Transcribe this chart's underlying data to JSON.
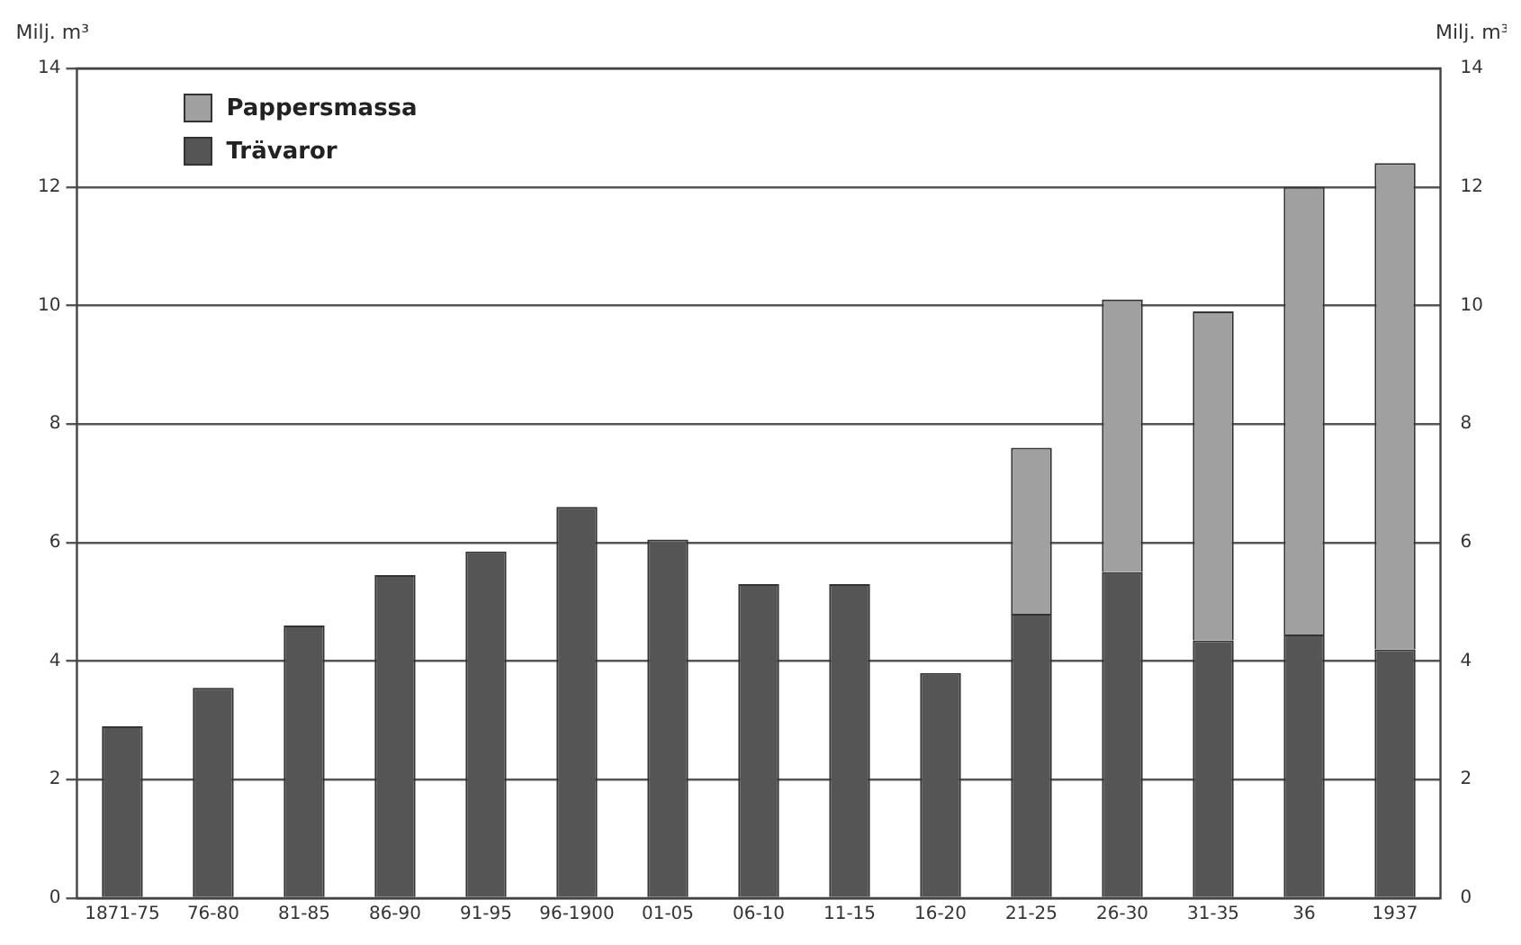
{
  "chart_data": {
    "type": "bar",
    "stacked": true,
    "categories": [
      "1871-75",
      "76-80",
      "81-85",
      "86-90",
      "91-95",
      "96-1900",
      "01-05",
      "06-10",
      "11-15",
      "16-20",
      "21-25",
      "26-30",
      "31-35",
      "36",
      "1937"
    ],
    "series": [
      {
        "name": "Trävaror",
        "color": "#555555",
        "values": [
          2.9,
          3.55,
          4.6,
          5.45,
          5.85,
          6.6,
          6.05,
          5.3,
          5.3,
          3.8,
          4.8,
          5.5,
          4.35,
          4.45,
          4.2
        ]
      },
      {
        "name": "Pappersmassa",
        "color": "#a0a0a0",
        "values": [
          null,
          null,
          null,
          null,
          null,
          null,
          null,
          null,
          null,
          null,
          2.8,
          4.6,
          5.55,
          7.55,
          8.2
        ]
      }
    ],
    "ylabel": "Milj. m³",
    "y2label": "Milj. m³",
    "ylim": [
      0,
      14
    ],
    "yticks": [
      0,
      2,
      4,
      6,
      8,
      10,
      12,
      14
    ],
    "y2lim": [
      0,
      14
    ],
    "y2ticks": [
      0,
      2,
      4,
      6,
      8,
      10,
      12,
      14
    ],
    "grid": "y",
    "legend": "top left"
  }
}
